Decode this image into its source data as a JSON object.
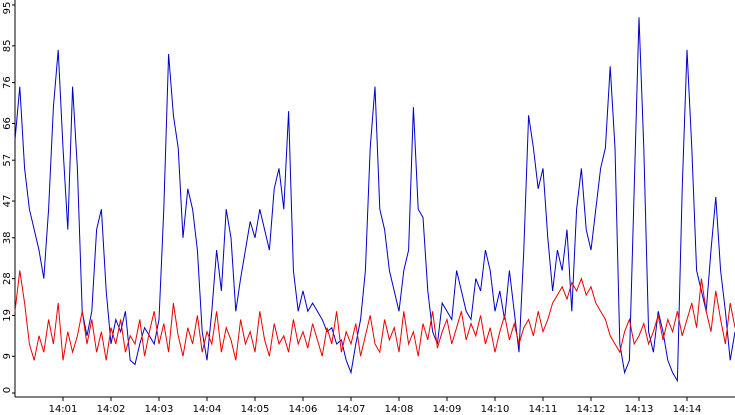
{
  "chart_data": {
    "type": "line",
    "categories": [
      null,
      null,
      null,
      null,
      null,
      null,
      null,
      null,
      null,
      null,
      "14:01",
      null,
      null,
      null,
      null,
      null,
      null,
      null,
      null,
      null,
      "14:02",
      null,
      null,
      null,
      null,
      null,
      null,
      null,
      null,
      null,
      "14:03",
      null,
      null,
      null,
      null,
      null,
      null,
      null,
      null,
      null,
      "14:04",
      null,
      null,
      null,
      null,
      null,
      null,
      null,
      null,
      null,
      "14:05",
      null,
      null,
      null,
      null,
      null,
      null,
      null,
      null,
      null,
      "14:06",
      null,
      null,
      null,
      null,
      null,
      null,
      null,
      null,
      null,
      "14:07",
      null,
      null,
      null,
      null,
      null,
      null,
      null,
      null,
      null,
      "14:08",
      null,
      null,
      null,
      null,
      null,
      null,
      null,
      null,
      null,
      "14:09",
      null,
      null,
      null,
      null,
      null,
      null,
      null,
      null,
      null,
      "14:10",
      null,
      null,
      null,
      null,
      null,
      null,
      null,
      null,
      null,
      "14:11",
      null,
      null,
      null,
      null,
      null,
      null,
      null,
      null,
      null,
      "14:12",
      null,
      null,
      null,
      null,
      null,
      null,
      null,
      null,
      null,
      "14:13",
      null,
      null,
      null,
      null,
      null,
      null,
      null,
      null,
      null,
      "14:14",
      null,
      null,
      null,
      null,
      null,
      null,
      null,
      null,
      null,
      null
    ],
    "series": [
      {
        "color": "#0000cc",
        "values": [
          62,
          75,
          55,
          45,
          40,
          35,
          28,
          45,
          70,
          84,
          60,
          40,
          75,
          55,
          20,
          14,
          20,
          40,
          45,
          25,
          12,
          18,
          15,
          20,
          8,
          7,
          12,
          16,
          14,
          12,
          18,
          45,
          83,
          68,
          60,
          38,
          50,
          45,
          35,
          15,
          8,
          20,
          35,
          25,
          45,
          38,
          20,
          28,
          35,
          42,
          38,
          45,
          40,
          35,
          50,
          55,
          45,
          69,
          30,
          20,
          25,
          20,
          22,
          20,
          18,
          15,
          16,
          12,
          13,
          8,
          5,
          12,
          18,
          30,
          60,
          75,
          45,
          40,
          30,
          25,
          20,
          30,
          35,
          70,
          45,
          43,
          25,
          15,
          12,
          22,
          20,
          18,
          30,
          25,
          20,
          18,
          28,
          25,
          35,
          30,
          20,
          25,
          18,
          30,
          20,
          10,
          35,
          68,
          60,
          50,
          55,
          38,
          25,
          35,
          30,
          40,
          20,
          45,
          55,
          40,
          35,
          45,
          55,
          60,
          80,
          60,
          12,
          5,
          8,
          50,
          92,
          60,
          15,
          10,
          20,
          15,
          8,
          5,
          3,
          50,
          84,
          60,
          30,
          25,
          20,
          35,
          48,
          30,
          20,
          8,
          15
        ]
      },
      {
        "color": "#ee0000",
        "values": [
          20,
          30,
          22,
          12,
          8,
          14,
          10,
          18,
          12,
          22,
          8,
          15,
          10,
          14,
          20,
          12,
          18,
          10,
          15,
          8,
          16,
          12,
          18,
          10,
          14,
          12,
          18,
          9,
          15,
          20,
          12,
          17,
          10,
          22,
          14,
          9,
          16,
          12,
          19,
          10,
          15,
          12,
          20,
          10,
          16,
          13,
          8,
          18,
          12,
          15,
          10,
          20,
          13,
          9,
          17,
          12,
          14,
          10,
          18,
          12,
          15,
          11,
          17,
          13,
          9,
          16,
          12,
          20,
          10,
          15,
          12,
          17,
          9,
          14,
          19,
          12,
          10,
          18,
          13,
          16,
          10,
          20,
          12,
          15,
          9,
          17,
          13,
          20,
          11,
          15,
          18,
          12,
          16,
          20,
          13,
          17,
          14,
          19,
          12,
          16,
          10,
          15,
          19,
          13,
          17,
          12,
          16,
          18,
          14,
          20,
          15,
          18,
          22,
          24,
          26,
          23,
          27,
          25,
          28,
          24,
          26,
          22,
          20,
          18,
          14,
          12,
          10,
          15,
          18,
          12,
          14,
          17,
          12,
          15,
          19,
          13,
          18,
          15,
          20,
          14,
          18,
          22,
          16,
          28,
          20,
          15,
          25,
          18,
          12,
          22,
          16
        ]
      }
    ],
    "ylim": [
      0,
      95
    ],
    "yticks": [
      0,
      9,
      19,
      28,
      38,
      47,
      57,
      66,
      76,
      85,
      95
    ]
  }
}
